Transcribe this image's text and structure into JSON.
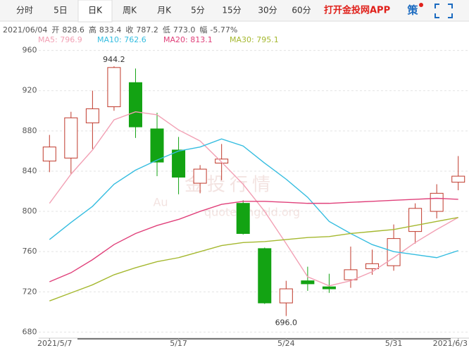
{
  "tabs": [
    "分时",
    "5日",
    "日K",
    "周K",
    "月K",
    "5分",
    "15分",
    "30分",
    "60分"
  ],
  "active_tab": 2,
  "app_link": "打开金投网APP",
  "strategy": "策",
  "info": {
    "date": "2021/06/04",
    "items": [
      {
        "label": "开",
        "value": "828.6"
      },
      {
        "label": "高",
        "value": "833.4"
      },
      {
        "label": "收",
        "value": "787.2"
      },
      {
        "label": "低",
        "value": "773.0"
      },
      {
        "label": "幅",
        "value": "-5.77%"
      }
    ]
  },
  "watermark": {
    "logo": "Au",
    "title": "金投行情",
    "url": "quote.cngold.org"
  },
  "chart_data": {
    "type": "candlestick",
    "categories": [
      "2021/5/7",
      null,
      null,
      null,
      null,
      null,
      "5/17",
      null,
      null,
      null,
      null,
      "5/24",
      null,
      null,
      null,
      null,
      "5/31",
      null,
      null,
      "2021/6/3"
    ],
    "open": [
      850,
      853,
      888,
      904,
      928,
      882,
      861,
      828,
      848,
      808,
      763,
      709,
      731,
      725,
      732,
      743,
      746,
      780,
      800,
      829
    ],
    "high": [
      876,
      899,
      920,
      944.2,
      942,
      898,
      874,
      846,
      867,
      811,
      764,
      731,
      745,
      738,
      765,
      762,
      787,
      808,
      827,
      855
    ],
    "low": [
      839,
      837,
      862,
      900,
      873,
      835,
      817,
      818,
      831,
      777,
      708,
      696,
      721,
      719,
      724,
      737,
      741,
      768,
      793,
      821
    ],
    "close": [
      864,
      893,
      902,
      943,
      884,
      849,
      834,
      842,
      852,
      778,
      709,
      723,
      728,
      723,
      742,
      748,
      773,
      803,
      818,
      835
    ],
    "up_color": "#c0392b",
    "down_color": "#13a313",
    "high_label": "944.2",
    "low_label": "696.0",
    "series": [
      {
        "legend": "MA5: 796.9",
        "color": "#f2a0b4",
        "values": [
          808,
          837,
          861,
          891,
          899,
          896,
          881,
          870,
          849,
          827,
          800,
          768,
          735,
          726,
          731,
          740,
          754,
          769,
          782,
          794
        ]
      },
      {
        "legend": "MA10: 762.6",
        "color": "#35bde0",
        "values": [
          772,
          789,
          805,
          827,
          841,
          851,
          860,
          864,
          872,
          865,
          848,
          832,
          814,
          790,
          778,
          767,
          760,
          757,
          754,
          761
        ]
      },
      {
        "legend": "MA20: 813.1",
        "color": "#e0407a",
        "values": [
          730,
          739,
          752,
          767,
          778,
          786,
          792,
          800,
          807,
          810,
          810,
          809,
          808,
          808,
          809,
          810,
          811,
          812,
          813,
          812
        ]
      },
      {
        "legend": "MA30: 795.1",
        "color": "#a5b82f",
        "values": [
          711,
          719,
          727,
          737,
          744,
          750,
          754,
          760,
          766,
          769,
          770,
          772,
          774,
          775,
          778,
          780,
          782,
          786,
          790,
          794
        ]
      }
    ],
    "ylim": [
      674,
      966
    ],
    "yticks": [
      680,
      720,
      760,
      800,
      840,
      880,
      920,
      960
    ],
    "grid": true
  }
}
